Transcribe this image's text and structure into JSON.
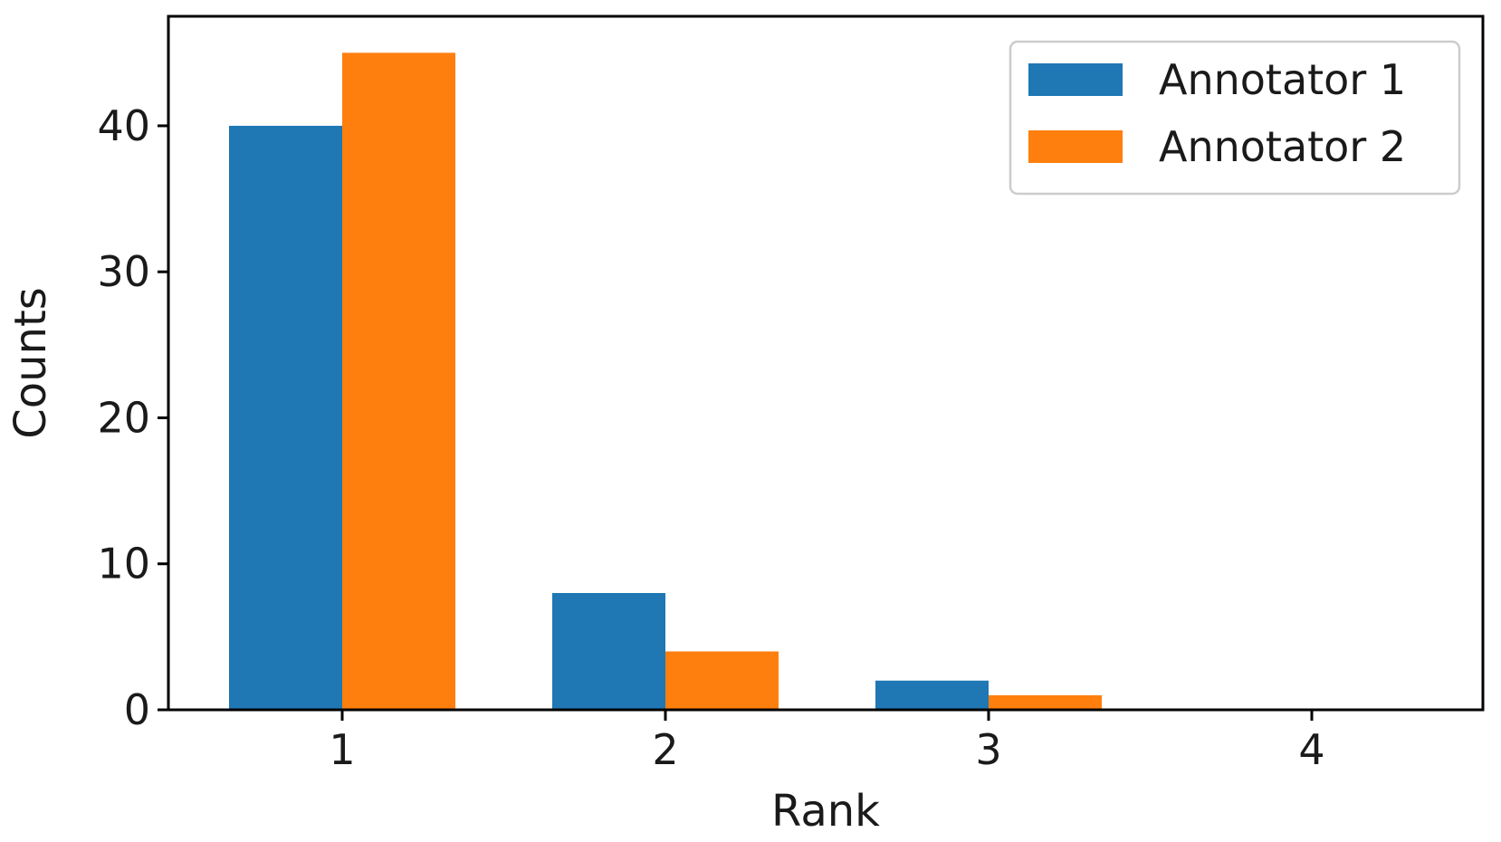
{
  "chart_data": {
    "type": "bar",
    "title": "",
    "xlabel": "Rank",
    "ylabel": "Counts",
    "categories": [
      "1",
      "2",
      "3",
      "4"
    ],
    "ylim": [
      0,
      47.5
    ],
    "yticks": [
      0,
      10,
      20,
      30,
      40
    ],
    "grid": false,
    "legend": "top-right",
    "series": [
      {
        "name": "Annotator 1",
        "color": "#1f77b4",
        "values": [
          40,
          8,
          2,
          0
        ]
      },
      {
        "name": "Annotator 2",
        "color": "#ff7f0e",
        "values": [
          45,
          4,
          1,
          0
        ]
      }
    ]
  }
}
